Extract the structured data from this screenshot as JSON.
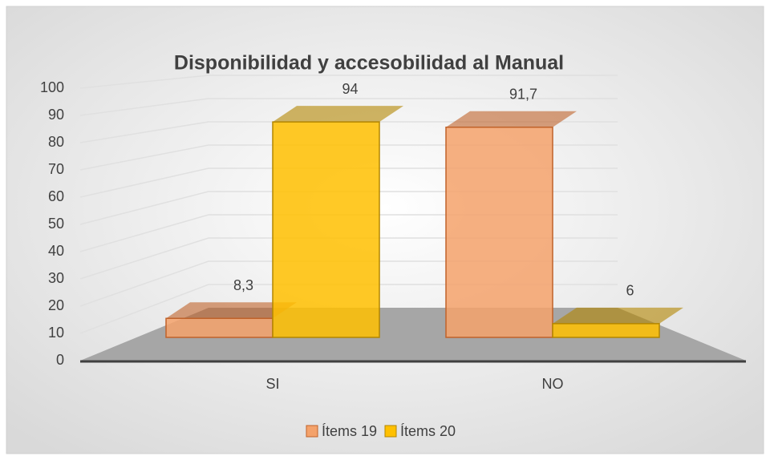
{
  "chart_data": {
    "type": "bar3d",
    "title": "Disponibilidad y accesobilidad al Manual",
    "categories": [
      "SI",
      "NO"
    ],
    "series": [
      {
        "name": "Ítems 19",
        "color": "#f4a26b",
        "values": [
          8.3,
          91.7
        ],
        "value_labels": [
          "8,3",
          "91,7"
        ]
      },
      {
        "name": "Ítems 20",
        "color": "#ffc000",
        "values": [
          94,
          6
        ]
      }
    ],
    "ylim": [
      0,
      100
    ],
    "yticks": [
      0,
      10,
      20,
      30,
      40,
      50,
      60,
      70,
      80,
      90,
      100
    ],
    "grid": true,
    "legend": "bottom"
  }
}
